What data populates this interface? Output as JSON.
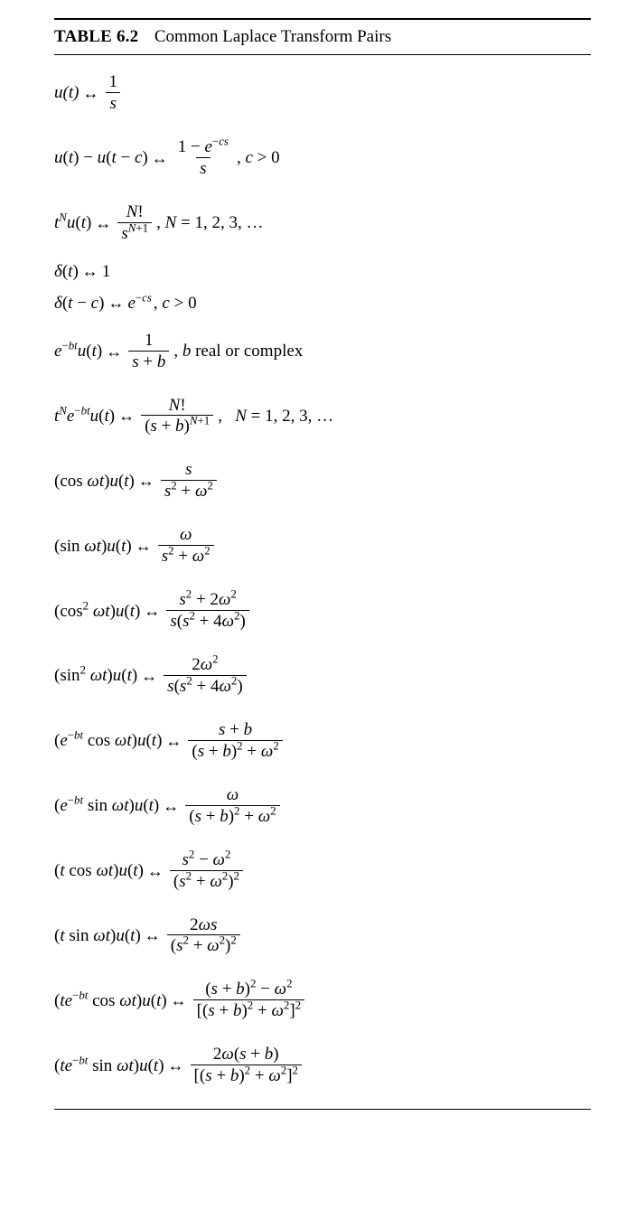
{
  "table": {
    "label": "TABLE 6.2",
    "title": "Common Laplace Transform Pairs",
    "border_color": "#000000",
    "title_fontsize": 19,
    "background_color": "#ffffff",
    "font_family": "Times New Roman",
    "pair_fontsize": 19
  },
  "symbols": {
    "arrow": "↔",
    "minus": "−",
    "plus": "+",
    "gt": ">",
    "eq": "="
  },
  "pairs": [
    {
      "id": "unit-step",
      "time": "u(t)",
      "freq_num": "1",
      "freq_den": "s"
    },
    {
      "id": "shifted-step",
      "time_lhs": "u(t) − u(t − c)",
      "freq_num": "1 − e^{−cs}",
      "freq_den": "s",
      "condition": ", c > 0"
    },
    {
      "id": "power-step",
      "time_lhs": "t^{N} u(t)",
      "freq_num": "N!",
      "freq_den": "s^{N+1}",
      "condition": ", N = 1, 2, 3, …"
    },
    {
      "id": "delta",
      "time": "δ(t)",
      "freq": "1"
    },
    {
      "id": "shifted-delta",
      "time": "δ(t − c)",
      "freq": "e^{−cs}",
      "condition": ", c > 0"
    },
    {
      "id": "exp-step",
      "time": "e^{−bt} u(t)",
      "freq_num": "1",
      "freq_den": "s + b",
      "condition": ", b real or complex"
    },
    {
      "id": "power-exp-step",
      "time": "t^{N} e^{−bt} u(t)",
      "freq_num": "N!",
      "freq_den": "(s + b)^{N+1}",
      "condition": ",   N = 1, 2, 3, …"
    },
    {
      "id": "cos",
      "time": "(cos ωt) u(t)",
      "freq_num": "s",
      "freq_den": "s² + ω²"
    },
    {
      "id": "sin",
      "time": "(sin ωt) u(t)",
      "freq_num": "ω",
      "freq_den": "s² + ω²"
    },
    {
      "id": "cos2",
      "time": "(cos² ωt) u(t)",
      "freq_num": "s² + 2ω²",
      "freq_den": "s(s² + 4ω²)"
    },
    {
      "id": "sin2",
      "time": "(sin² ωt) u(t)",
      "freq_num": "2ω²",
      "freq_den": "s(s² + 4ω²)"
    },
    {
      "id": "exp-cos",
      "time": "(e^{−bt} cos ωt) u(t)",
      "freq_num": "s + b",
      "freq_den": "(s + b)² + ω²"
    },
    {
      "id": "exp-sin",
      "time": "(e^{−bt} sin ωt) u(t)",
      "freq_num": "ω",
      "freq_den": "(s + b)² + ω²"
    },
    {
      "id": "t-cos",
      "time": "(t cos ωt) u(t)",
      "freq_num": "s² − ω²",
      "freq_den": "(s² + ω²)²"
    },
    {
      "id": "t-sin",
      "time": "(t sin ωt) u(t)",
      "freq_num": "2ωs",
      "freq_den": "(s² + ω²)²"
    },
    {
      "id": "t-exp-cos",
      "time": "(t e^{−bt} cos ωt) u(t)",
      "freq_num": "(s + b)² − ω²",
      "freq_den": "[(s + b)² + ω²]²"
    },
    {
      "id": "t-exp-sin",
      "time": "(t e^{−bt} sin ωt) u(t)",
      "freq_num": "2ω(s + b)",
      "freq_den": "[(s + b)² + ω²]²"
    }
  ]
}
